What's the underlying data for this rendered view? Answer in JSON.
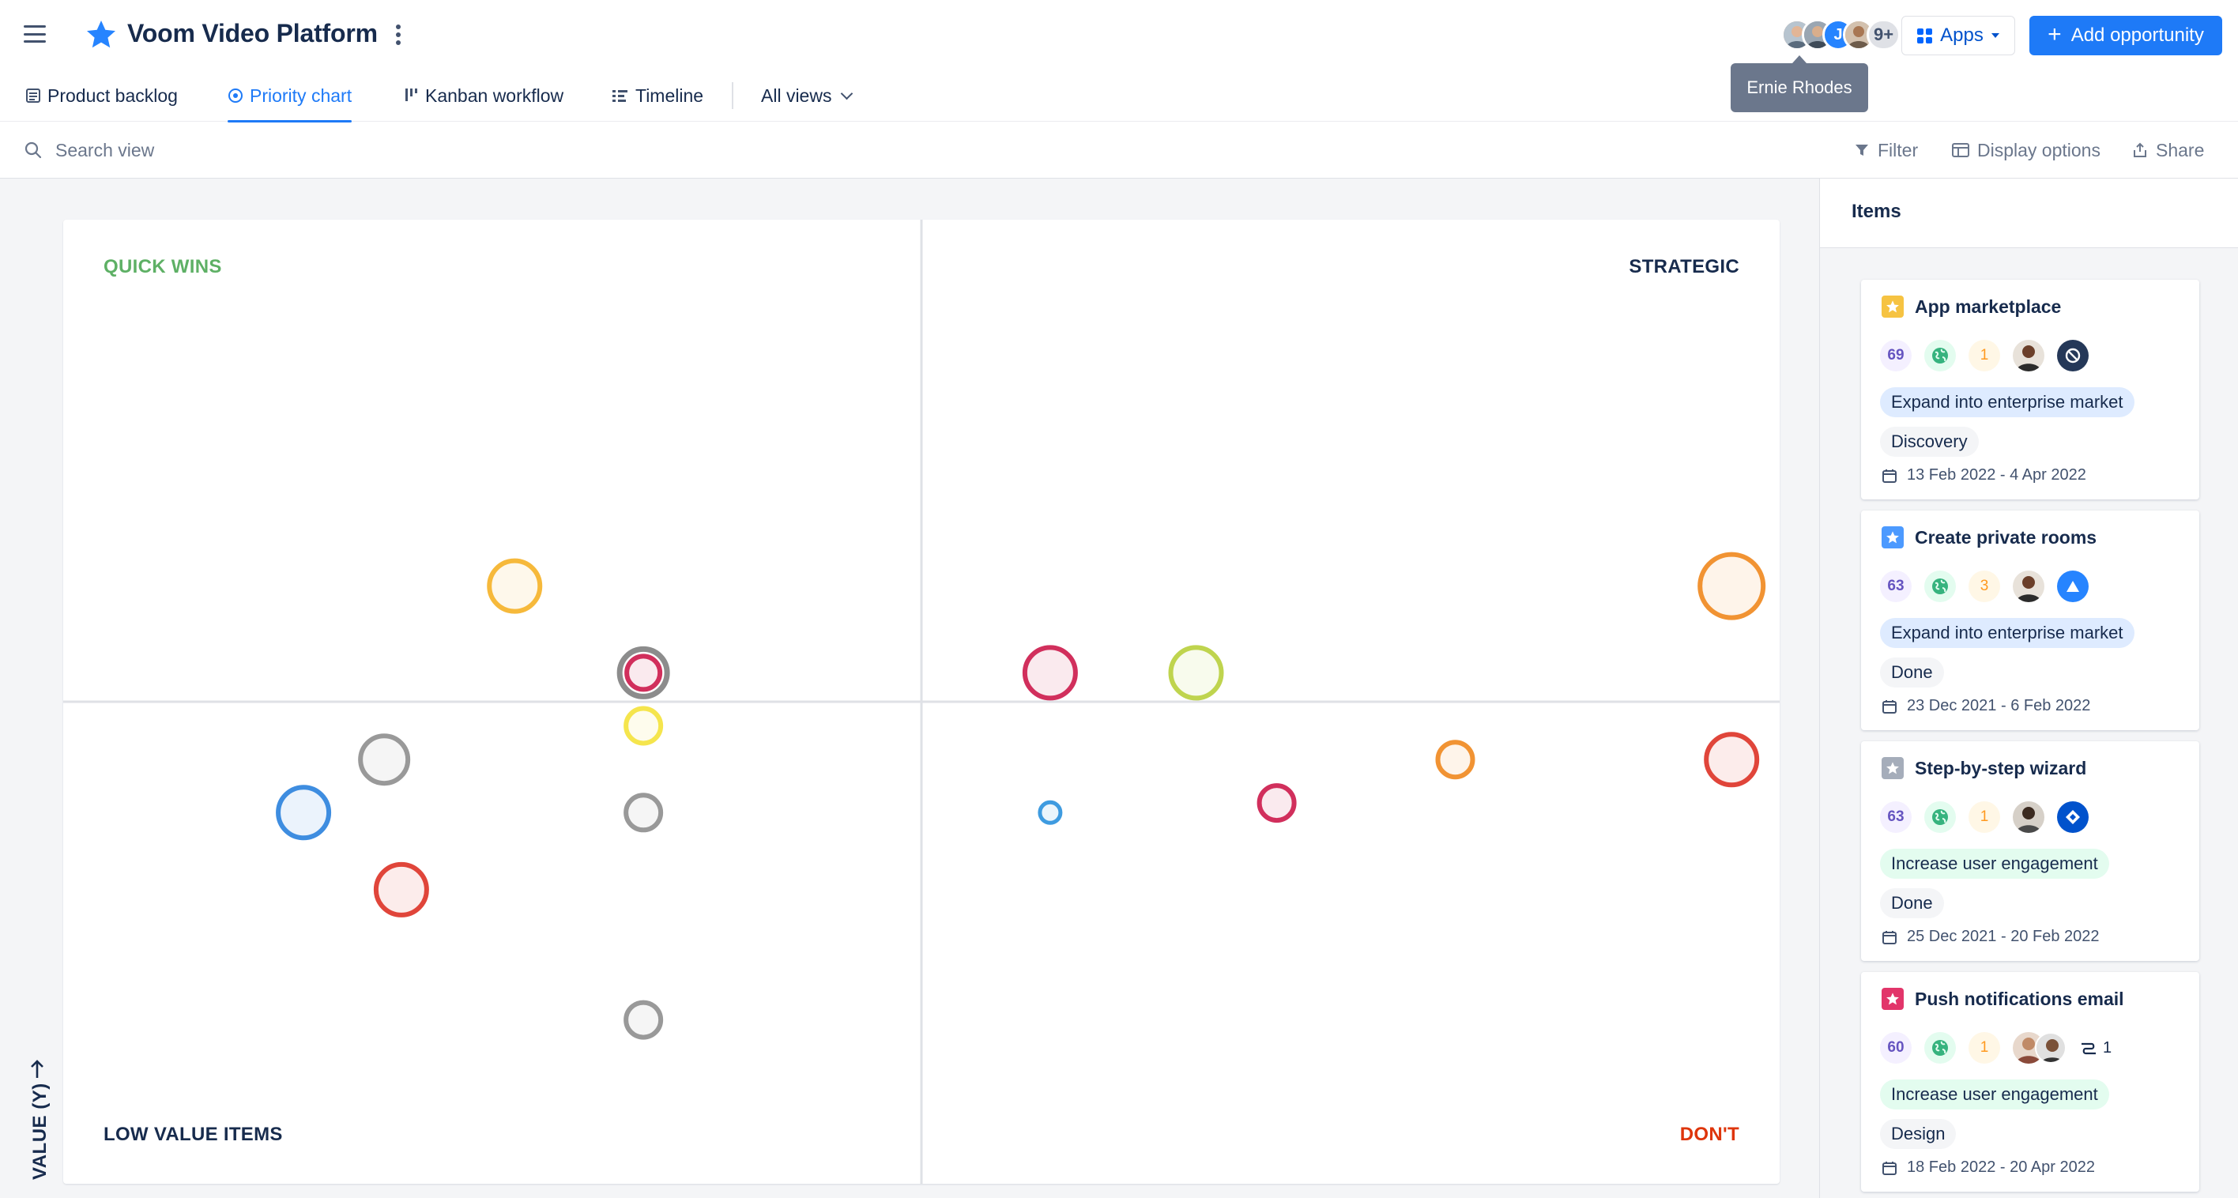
{
  "header": {
    "project_title": "Voom Video Platform",
    "avatars_overflow": "9+",
    "avatar_initial": "J",
    "tooltip": "Ernie Rhodes",
    "apps_label": "Apps",
    "add_label": "Add opportunity"
  },
  "tabs": [
    {
      "label": "Product backlog",
      "icon": "list-icon"
    },
    {
      "label": "Priority chart",
      "icon": "target-icon",
      "active": true
    },
    {
      "label": "Kanban workflow",
      "icon": "kanban-icon"
    },
    {
      "label": "Timeline",
      "icon": "timeline-icon"
    },
    {
      "label": "All views",
      "icon": "chevron-down-icon"
    }
  ],
  "toolbar": {
    "search_placeholder": "Search view",
    "filter_label": "Filter",
    "display_label": "Display options",
    "share_label": "Share"
  },
  "chart": {
    "quadrants": {
      "top_left": "QUICK WINS",
      "top_right": "STRATEGIC",
      "bottom_left": "LOW VALUE ITEMS",
      "bottom_right": "DON'T"
    },
    "y_axis_label": "VALUE (Y)",
    "colors": {
      "quick_wins": "#5EB065",
      "donts": "#DE350B",
      "gridline": "#DFE1E6"
    }
  },
  "chart_data": {
    "type": "scatter",
    "note_axes": "x increases to the right, y increases upward; quadrant split at the midpoint",
    "xlim": [
      0,
      100
    ],
    "ylim": [
      0,
      100
    ],
    "points": [
      {
        "x": 26.3,
        "y": 62.0,
        "size": 32,
        "color": "#F6B93B"
      },
      {
        "x": 33.8,
        "y": 53.0,
        "size": 30,
        "color": "#D12F5C",
        "ring": "#8C8C8C"
      },
      {
        "x": 33.8,
        "y": 47.5,
        "size": 22,
        "color": "#F5E54D"
      },
      {
        "x": 18.7,
        "y": 44.0,
        "size": 30,
        "color": "#999999"
      },
      {
        "x": 14.0,
        "y": 38.5,
        "size": 32,
        "color": "#3E8DE0"
      },
      {
        "x": 33.8,
        "y": 38.5,
        "size": 22,
        "color": "#999999"
      },
      {
        "x": 19.7,
        "y": 30.5,
        "size": 32,
        "color": "#E0453A"
      },
      {
        "x": 33.8,
        "y": 17.0,
        "size": 22,
        "color": "#999999"
      },
      {
        "x": 57.5,
        "y": 53.0,
        "size": 32,
        "color": "#D12F5C"
      },
      {
        "x": 66.0,
        "y": 53.0,
        "size": 32,
        "color": "#BFD44E"
      },
      {
        "x": 97.2,
        "y": 62.0,
        "size": 40,
        "color": "#F19333"
      },
      {
        "x": 57.5,
        "y": 38.5,
        "size": 13,
        "color": "#3E9BE0"
      },
      {
        "x": 70.7,
        "y": 39.5,
        "size": 22,
        "color": "#D12F5C"
      },
      {
        "x": 81.1,
        "y": 44.0,
        "size": 22,
        "color": "#F19333"
      },
      {
        "x": 97.2,
        "y": 44.0,
        "size": 32,
        "color": "#E0453A"
      }
    ]
  },
  "side_panel": {
    "title": "Items",
    "cards": [
      {
        "title": "App marketplace",
        "star_color": "#F6C342",
        "score": "69",
        "count": "1",
        "goal": "Expand into enterprise market",
        "goal_style": "blue",
        "status": "Discovery",
        "dates": "13 Feb 2022 - 4 Apr 2022",
        "logo": "no-entry-logo"
      },
      {
        "title": "Create private rooms",
        "star_color": "#4C9AFF",
        "score": "63",
        "count": "3",
        "goal": "Expand into enterprise market",
        "goal_style": "blue",
        "status": "Done",
        "dates": "23 Dec 2021 - 6 Feb 2022",
        "logo": "triangle-logo"
      },
      {
        "title": "Step-by-step wizard",
        "star_color": "#A5ADBA",
        "score": "63",
        "count": "1",
        "goal": "Increase user engagement",
        "goal_style": "green",
        "status": "Done",
        "dates": "25 Dec 2021 - 20 Feb 2022",
        "logo": "diamond-logo"
      },
      {
        "title": "Push notifications email",
        "star_color": "#E2356A",
        "score": "60",
        "count": "1",
        "goal": "Increase user engagement",
        "goal_style": "green",
        "status": "Design",
        "dates": "18 Feb 2022 - 20 Apr 2022",
        "linked_count": "1"
      }
    ]
  }
}
